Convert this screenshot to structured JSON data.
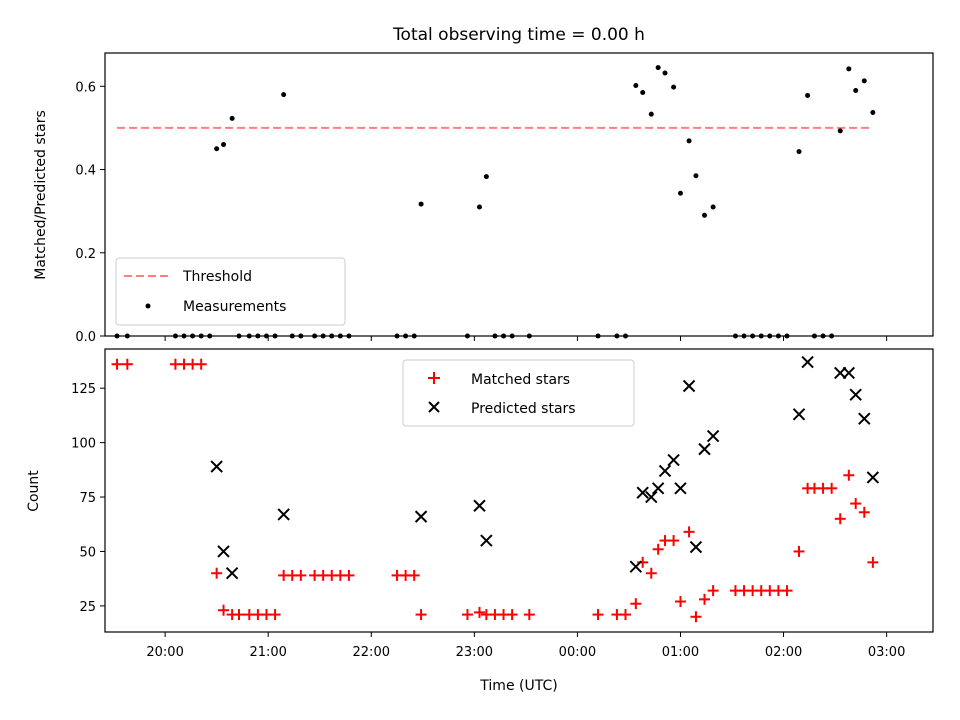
{
  "chart_data": [
    {
      "type": "scatter",
      "title": "Total observing time = 0.00 h",
      "ylabel": "Matched/Predicted stars",
      "xlabel": "",
      "ylim": [
        0,
        0.68
      ],
      "yticks": [
        "0.0",
        "0.2",
        "0.4",
        "0.6"
      ],
      "x_range": [
        "19:25",
        "03:27"
      ],
      "legend": {
        "placement": "lower-left",
        "entries": [
          "Threshold",
          "Measurements"
        ]
      },
      "threshold": {
        "name": "Threshold",
        "value": 0.5,
        "x_start": "19:32",
        "x_end": "02:50",
        "color": "#ff7f7f"
      },
      "series": [
        {
          "name": "Measurements",
          "color": "#000000",
          "points": [
            [
              "19:32",
              0
            ],
            [
              "19:38",
              0
            ],
            [
              "20:06",
              0
            ],
            [
              "20:11",
              0
            ],
            [
              "20:16",
              0
            ],
            [
              "20:21",
              0
            ],
            [
              "20:26",
              0
            ],
            [
              "20:30",
              0.45
            ],
            [
              "20:34",
              0.46
            ],
            [
              "20:39",
              0.523
            ],
            [
              "20:43",
              0
            ],
            [
              "20:49",
              0
            ],
            [
              "20:54",
              0
            ],
            [
              "20:59",
              0
            ],
            [
              "21:04",
              0
            ],
            [
              "21:09",
              0.58
            ],
            [
              "21:14",
              0
            ],
            [
              "21:19",
              0
            ],
            [
              "21:27",
              0
            ],
            [
              "21:32",
              0
            ],
            [
              "21:37",
              0
            ],
            [
              "21:42",
              0
            ],
            [
              "21:47",
              0
            ],
            [
              "22:15",
              0
            ],
            [
              "22:20",
              0
            ],
            [
              "22:25",
              0
            ],
            [
              "22:29",
              0.317
            ],
            [
              "22:56",
              0
            ],
            [
              "23:03",
              0.31
            ],
            [
              "23:07",
              0.383
            ],
            [
              "23:12",
              0
            ],
            [
              "23:17",
              0
            ],
            [
              "23:22",
              0
            ],
            [
              "23:32",
              0
            ],
            [
              "00:12",
              0
            ],
            [
              "00:23",
              0
            ],
            [
              "00:28",
              0
            ],
            [
              "00:34",
              0.602
            ],
            [
              "00:38",
              0.585
            ],
            [
              "00:43",
              0.533
            ],
            [
              "00:47",
              0.645
            ],
            [
              "00:51",
              0.632
            ],
            [
              "00:56",
              0.598
            ],
            [
              "01:00",
              0.343
            ],
            [
              "01:05",
              0.469
            ],
            [
              "01:09",
              0.385
            ],
            [
              "01:14",
              0.29
            ],
            [
              "01:19",
              0.31
            ],
            [
              "01:32",
              0
            ],
            [
              "01:37",
              0
            ],
            [
              "01:42",
              0
            ],
            [
              "01:47",
              0
            ],
            [
              "01:52",
              0
            ],
            [
              "01:57",
              0
            ],
            [
              "02:02",
              0
            ],
            [
              "02:09",
              0.443
            ],
            [
              "02:14",
              0.578
            ],
            [
              "02:18",
              0
            ],
            [
              "02:23",
              0
            ],
            [
              "02:28",
              0
            ],
            [
              "02:33",
              0.493
            ],
            [
              "02:38",
              0.642
            ],
            [
              "02:42",
              0.59
            ],
            [
              "02:47",
              0.613
            ],
            [
              "02:52",
              0.537
            ]
          ]
        }
      ]
    },
    {
      "type": "scatter",
      "title": "",
      "xlabel": "Time (UTC)",
      "ylabel": "Count",
      "ylim": [
        13,
        143
      ],
      "yticks": [
        "25",
        "50",
        "75",
        "100",
        "125"
      ],
      "x_range": [
        "19:25",
        "03:27"
      ],
      "xticks": [
        "20:00",
        "21:00",
        "22:00",
        "23:00",
        "00:00",
        "01:00",
        "02:00",
        "03:00"
      ],
      "legend": {
        "placement": "upper-center",
        "entries": [
          "Matched stars",
          "Predicted stars"
        ]
      },
      "series": [
        {
          "name": "Matched stars",
          "marker": "plus",
          "color": "#ff0000",
          "points": [
            [
              "19:32",
              136
            ],
            [
              "19:38",
              136
            ],
            [
              "20:06",
              136
            ],
            [
              "20:11",
              136
            ],
            [
              "20:16",
              136
            ],
            [
              "20:21",
              136
            ],
            [
              "20:30",
              40
            ],
            [
              "20:34",
              23
            ],
            [
              "20:39",
              21
            ],
            [
              "20:43",
              21
            ],
            [
              "20:49",
              21
            ],
            [
              "20:54",
              21
            ],
            [
              "20:59",
              21
            ],
            [
              "21:04",
              21
            ],
            [
              "21:09",
              39
            ],
            [
              "21:14",
              39
            ],
            [
              "21:19",
              39
            ],
            [
              "21:27",
              39
            ],
            [
              "21:32",
              39
            ],
            [
              "21:37",
              39
            ],
            [
              "21:42",
              39
            ],
            [
              "21:47",
              39
            ],
            [
              "22:15",
              39
            ],
            [
              "22:20",
              39
            ],
            [
              "22:25",
              39
            ],
            [
              "22:29",
              21
            ],
            [
              "22:56",
              21
            ],
            [
              "23:03",
              22
            ],
            [
              "23:07",
              21
            ],
            [
              "23:12",
              21
            ],
            [
              "23:17",
              21
            ],
            [
              "23:22",
              21
            ],
            [
              "23:32",
              21
            ],
            [
              "00:12",
              21
            ],
            [
              "00:23",
              21
            ],
            [
              "00:28",
              21
            ],
            [
              "00:34",
              26
            ],
            [
              "00:38",
              45
            ],
            [
              "00:43",
              40
            ],
            [
              "00:47",
              51
            ],
            [
              "00:51",
              55
            ],
            [
              "00:56",
              55
            ],
            [
              "01:00",
              27
            ],
            [
              "01:05",
              59
            ],
            [
              "01:09",
              20
            ],
            [
              "01:14",
              28
            ],
            [
              "01:19",
              32
            ],
            [
              "01:32",
              32
            ],
            [
              "01:37",
              32
            ],
            [
              "01:42",
              32
            ],
            [
              "01:47",
              32
            ],
            [
              "01:52",
              32
            ],
            [
              "01:57",
              32
            ],
            [
              "02:02",
              32
            ],
            [
              "02:09",
              50
            ],
            [
              "02:14",
              79
            ],
            [
              "02:18",
              79
            ],
            [
              "02:23",
              79
            ],
            [
              "02:28",
              79
            ],
            [
              "02:33",
              65
            ],
            [
              "02:38",
              85
            ],
            [
              "02:42",
              72
            ],
            [
              "02:47",
              68
            ],
            [
              "02:52",
              45
            ]
          ]
        },
        {
          "name": "Predicted stars",
          "marker": "x",
          "color": "#000000",
          "points": [
            [
              "20:30",
              89
            ],
            [
              "20:34",
              50
            ],
            [
              "20:39",
              40
            ],
            [
              "21:09",
              67
            ],
            [
              "22:29",
              66
            ],
            [
              "23:03",
              71
            ],
            [
              "23:07",
              55
            ],
            [
              "00:34",
              43
            ],
            [
              "00:38",
              77
            ],
            [
              "00:43",
              75
            ],
            [
              "00:47",
              79
            ],
            [
              "00:51",
              87
            ],
            [
              "00:56",
              92
            ],
            [
              "01:00",
              79
            ],
            [
              "01:05",
              126
            ],
            [
              "01:09",
              52
            ],
            [
              "01:14",
              97
            ],
            [
              "01:19",
              103
            ],
            [
              "02:09",
              113
            ],
            [
              "02:14",
              137
            ],
            [
              "02:33",
              132
            ],
            [
              "02:38",
              132
            ],
            [
              "02:42",
              122
            ],
            [
              "02:47",
              111
            ],
            [
              "02:52",
              84
            ]
          ]
        }
      ]
    }
  ]
}
